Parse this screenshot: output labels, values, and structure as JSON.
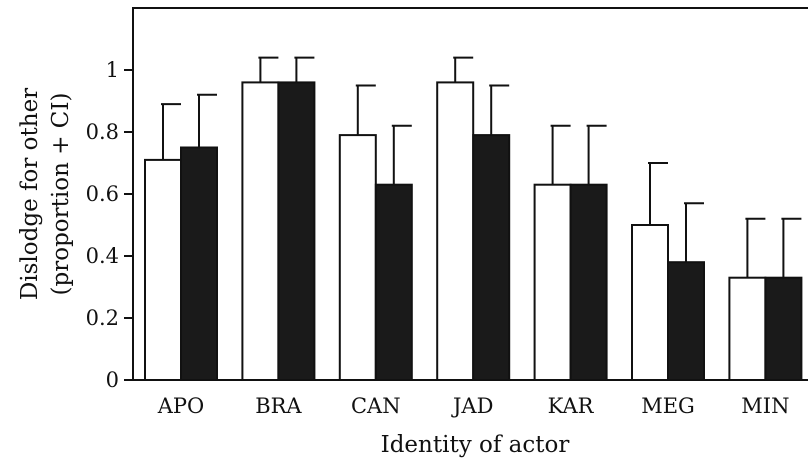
{
  "chart_data": {
    "type": "bar",
    "title": "",
    "xlabel": "Identity of actor",
    "ylabel_lines": [
      "Dislodge for other",
      "(proportion + CI)"
    ],
    "categories": [
      "APO",
      "BRA",
      "CAN",
      "JAD",
      "KAR",
      "MEG",
      "MIN"
    ],
    "ylim": [
      0,
      1.2
    ],
    "yticks": [
      0,
      0.2,
      0.4,
      0.6,
      0.8,
      1
    ],
    "ytick_labels": [
      "0",
      "0.2",
      "0.4",
      "0.6",
      "0.8",
      "1"
    ],
    "grid": false,
    "legend": "none",
    "series": [
      {
        "fill": "#ffffff",
        "values": [
          0.71,
          0.96,
          0.79,
          0.96,
          0.63,
          0.5,
          0.33
        ],
        "ci_upper": [
          0.89,
          1.04,
          0.95,
          1.04,
          0.82,
          0.7,
          0.52
        ]
      },
      {
        "fill": "#1a1a1a",
        "values": [
          0.75,
          0.96,
          0.63,
          0.79,
          0.63,
          0.38,
          0.33
        ],
        "ci_upper": [
          0.92,
          1.04,
          0.82,
          0.95,
          0.82,
          0.57,
          0.52
        ]
      }
    ]
  }
}
